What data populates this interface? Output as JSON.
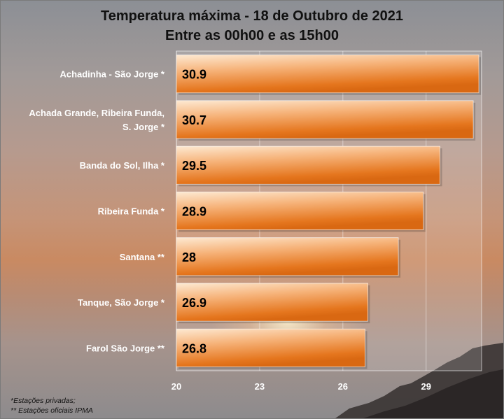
{
  "title": "Temperatura máxima - 18 de Outubro de 2021",
  "subtitle": "Entre as 00h00 e as 15h00",
  "notes": [
    "*Estações privadas;",
    "** Estações oficiais IPMA"
  ],
  "colors": {
    "bar_main": "#e5761e",
    "bar_light": "#fde9d2",
    "plot_bg": "#ffffff"
  },
  "chart_data": {
    "type": "bar",
    "orientation": "horizontal",
    "categories": [
      "Achadinha - São Jorge *",
      "Achada Grande, Ribeira Funda, S. Jorge *",
      "Banda do Sol, Ilha *",
      "Ribeira Funda *",
      "Santana **",
      "Tanque, São Jorge *",
      "Farol São Jorge **"
    ],
    "category_lines": [
      [
        "Achadinha - São Jorge *"
      ],
      [
        "Achada Grande, Ribeira Funda,",
        "S. Jorge *"
      ],
      [
        "Banda do Sol, Ilha *"
      ],
      [
        "Ribeira Funda *"
      ],
      [
        "Santana **"
      ],
      [
        "Tanque, São Jorge *"
      ],
      [
        "Farol São Jorge **"
      ]
    ],
    "values": [
      30.9,
      30.7,
      29.5,
      28.9,
      28,
      26.9,
      26.8
    ],
    "value_labels": [
      "30.9",
      "30.7",
      "29.5",
      "28.9",
      "28",
      "26.9",
      "26.8"
    ],
    "xlim": [
      20,
      31
    ],
    "xticks": [
      "20",
      "23",
      "26",
      "29"
    ],
    "tick_values": [
      20,
      23,
      26,
      29
    ],
    "grid": true,
    "data_labels": "inside-base"
  }
}
